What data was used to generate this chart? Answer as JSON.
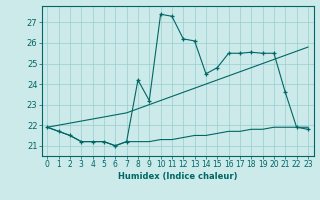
{
  "title": "",
  "xlabel": "Humidex (Indice chaleur)",
  "bg_color": "#cceaea",
  "grid_color": "#99cccc",
  "line_color": "#006666",
  "xlim": [
    -0.5,
    23.5
  ],
  "ylim": [
    20.5,
    27.8
  ],
  "xticks": [
    0,
    1,
    2,
    3,
    4,
    5,
    6,
    7,
    8,
    9,
    10,
    11,
    12,
    13,
    14,
    15,
    16,
    17,
    18,
    19,
    20,
    21,
    22,
    23
  ],
  "yticks": [
    21,
    22,
    23,
    24,
    25,
    26,
    27
  ],
  "line1_x": [
    0,
    1,
    2,
    3,
    4,
    5,
    6,
    7,
    8,
    9,
    10,
    11,
    12,
    13,
    14,
    15,
    16,
    17,
    18,
    19,
    20,
    21,
    22,
    23
  ],
  "line1_y": [
    21.9,
    21.7,
    21.5,
    21.2,
    21.2,
    21.2,
    21.0,
    21.2,
    21.2,
    21.2,
    21.3,
    21.3,
    21.4,
    21.5,
    21.5,
    21.6,
    21.7,
    21.7,
    21.8,
    21.8,
    21.9,
    21.9,
    21.9,
    21.9
  ],
  "line2_x": [
    0,
    1,
    2,
    3,
    4,
    5,
    6,
    7,
    8,
    9,
    10,
    11,
    12,
    13,
    14,
    15,
    16,
    17,
    18,
    19,
    20,
    21,
    22,
    23
  ],
  "line2_y": [
    21.9,
    22.0,
    22.1,
    22.2,
    22.3,
    22.4,
    22.5,
    22.6,
    22.8,
    23.0,
    23.2,
    23.4,
    23.6,
    23.8,
    24.0,
    24.2,
    24.4,
    24.6,
    24.8,
    25.0,
    25.2,
    25.4,
    25.6,
    25.8
  ],
  "line3_x": [
    0,
    1,
    2,
    3,
    4,
    5,
    6,
    7,
    8,
    9,
    10,
    11,
    12,
    13,
    14,
    15,
    16,
    17,
    18,
    19,
    20,
    21,
    22,
    23
  ],
  "line3_y": [
    21.9,
    21.7,
    21.5,
    21.2,
    21.2,
    21.2,
    21.0,
    21.2,
    24.2,
    23.2,
    27.4,
    27.3,
    26.2,
    26.1,
    24.5,
    24.8,
    25.5,
    25.5,
    25.55,
    25.5,
    25.5,
    23.6,
    21.9,
    21.8
  ]
}
